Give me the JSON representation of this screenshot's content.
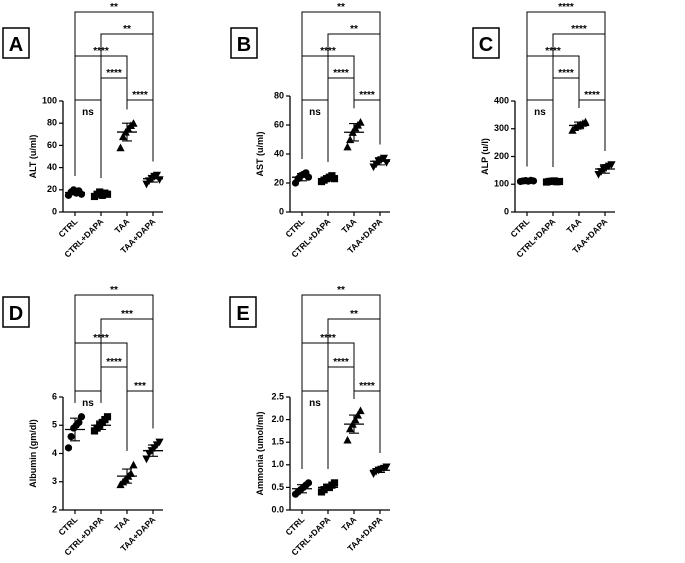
{
  "chart_data": [
    {
      "type": "dot",
      "panel": "A",
      "ylabel": "ALT (u/ml)",
      "categories": [
        "CTRL",
        "CTRL+DAPA",
        "TAA",
        "TAA+DAPA"
      ],
      "ylim": [
        0,
        100
      ],
      "yticks": [
        0,
        20,
        40,
        60,
        80,
        100
      ],
      "groups": [
        [
          15,
          18,
          20,
          17,
          19,
          16
        ],
        [
          14,
          16,
          18,
          15,
          17,
          16
        ],
        [
          58,
          68,
          72,
          75,
          78,
          80
        ],
        [
          25,
          28,
          30,
          32,
          33,
          29
        ]
      ],
      "means": [
        17.5,
        16,
        72,
        30
      ],
      "sds": [
        2,
        1.5,
        8,
        3
      ],
      "comparisons": [
        {
          "pair": [
            0,
            3
          ],
          "label": "**"
        },
        {
          "pair": [
            1,
            3
          ],
          "label": "**"
        },
        {
          "pair": [
            0,
            2
          ],
          "label": "****"
        },
        {
          "pair": [
            1,
            2
          ],
          "label": "****"
        },
        {
          "pair": [
            0,
            1
          ],
          "label": "ns"
        },
        {
          "pair": [
            2,
            3
          ],
          "label": "****"
        }
      ]
    },
    {
      "type": "dot",
      "panel": "B",
      "ylabel": "AST (u/ml)",
      "categories": [
        "CTRL",
        "CTRL+DAPA",
        "TAA",
        "TAA+DAPA"
      ],
      "ylim": [
        0,
        80
      ],
      "yticks": [
        0,
        20,
        40,
        60,
        80
      ],
      "groups": [
        [
          20,
          23,
          25,
          26,
          27,
          24
        ],
        [
          21,
          22,
          23,
          24,
          25,
          23
        ],
        [
          45,
          50,
          55,
          58,
          60,
          62
        ],
        [
          31,
          33,
          35,
          36,
          37,
          34
        ]
      ],
      "means": [
        24,
        23,
        55,
        35
      ],
      "sds": [
        2.5,
        1.5,
        6,
        2.5
      ],
      "comparisons": [
        {
          "pair": [
            0,
            3
          ],
          "label": "**"
        },
        {
          "pair": [
            1,
            3
          ],
          "label": "**"
        },
        {
          "pair": [
            0,
            2
          ],
          "label": "****"
        },
        {
          "pair": [
            1,
            2
          ],
          "label": "****"
        },
        {
          "pair": [
            0,
            1
          ],
          "label": "ns"
        },
        {
          "pair": [
            2,
            3
          ],
          "label": "****"
        }
      ]
    },
    {
      "type": "dot",
      "panel": "C",
      "ylabel": "ALP (u/l)",
      "categories": [
        "CTRL",
        "CTRL+DAPA",
        "TAA",
        "TAA+DAPA"
      ],
      "ylim": [
        0,
        400
      ],
      "yticks": [
        0,
        100,
        200,
        300,
        400
      ],
      "groups": [
        [
          110,
          112,
          113,
          111,
          114,
          112
        ],
        [
          108,
          110,
          111,
          112,
          109,
          110
        ],
        [
          295,
          305,
          310,
          315,
          320,
          325
        ],
        [
          135,
          145,
          155,
          160,
          165,
          170
        ]
      ],
      "means": [
        112,
        110,
        312,
        155
      ],
      "sds": [
        2,
        2,
        12,
        15
      ],
      "comparisons": [
        {
          "pair": [
            0,
            3
          ],
          "label": "****"
        },
        {
          "pair": [
            1,
            3
          ],
          "label": "****"
        },
        {
          "pair": [
            0,
            2
          ],
          "label": "****"
        },
        {
          "pair": [
            1,
            2
          ],
          "label": "****"
        },
        {
          "pair": [
            0,
            1
          ],
          "label": "ns"
        },
        {
          "pair": [
            2,
            3
          ],
          "label": "****"
        }
      ]
    },
    {
      "type": "dot",
      "panel": "D",
      "ylabel": "Albumin (gm/dl)",
      "categories": [
        "CTRL",
        "CTRL+DAPA",
        "TAA",
        "TAA+DAPA"
      ],
      "ylim": [
        2,
        6
      ],
      "yticks": [
        2,
        3,
        4,
        5,
        6
      ],
      "groups": [
        [
          4.2,
          4.6,
          4.9,
          5.0,
          5.1,
          5.3
        ],
        [
          4.8,
          4.9,
          5.0,
          5.1,
          5.2,
          5.3
        ],
        [
          2.9,
          3.0,
          3.1,
          3.2,
          3.3,
          3.6
        ],
        [
          3.8,
          4.0,
          4.1,
          4.2,
          4.3,
          4.4
        ]
      ],
      "means": [
        4.85,
        5.0,
        3.2,
        4.1
      ],
      "sds": [
        0.4,
        0.15,
        0.25,
        0.2
      ],
      "comparisons": [
        {
          "pair": [
            0,
            3
          ],
          "label": "**"
        },
        {
          "pair": [
            1,
            3
          ],
          "label": "***"
        },
        {
          "pair": [
            0,
            2
          ],
          "label": "****"
        },
        {
          "pair": [
            1,
            2
          ],
          "label": "****"
        },
        {
          "pair": [
            0,
            1
          ],
          "label": "ns"
        },
        {
          "pair": [
            2,
            3
          ],
          "label": "***"
        }
      ]
    },
    {
      "type": "dot",
      "panel": "E",
      "ylabel": "Ammonia (umol/ml)",
      "categories": [
        "CTRL",
        "CTRL+DAPA",
        "TAA",
        "TAA+DAPA"
      ],
      "ylim": [
        0,
        2.5
      ],
      "yticks": [
        {
          "value": 0,
          "label": "0.0"
        },
        0.5,
        {
          "value": 1,
          "label": "1.0"
        },
        1.5,
        {
          "value": 2,
          "label": "2.0"
        },
        2.5
      ],
      "groups": [
        [
          0.35,
          0.4,
          0.45,
          0.5,
          0.55,
          0.6
        ],
        [
          0.4,
          0.45,
          0.5,
          0.5,
          0.55,
          0.6
        ],
        [
          1.55,
          1.8,
          1.9,
          2.0,
          2.1,
          2.2
        ],
        [
          0.8,
          0.85,
          0.88,
          0.9,
          0.92,
          0.95
        ]
      ],
      "means": [
        0.47,
        0.5,
        1.9,
        0.88
      ],
      "sds": [
        0.09,
        0.07,
        0.2,
        0.05
      ],
      "comparisons": [
        {
          "pair": [
            0,
            3
          ],
          "label": "**"
        },
        {
          "pair": [
            1,
            3
          ],
          "label": "**"
        },
        {
          "pair": [
            0,
            2
          ],
          "label": "****"
        },
        {
          "pair": [
            1,
            2
          ],
          "label": "****"
        },
        {
          "pair": [
            0,
            1
          ],
          "label": "ns"
        },
        {
          "pair": [
            2,
            3
          ],
          "label": "****"
        }
      ]
    }
  ]
}
